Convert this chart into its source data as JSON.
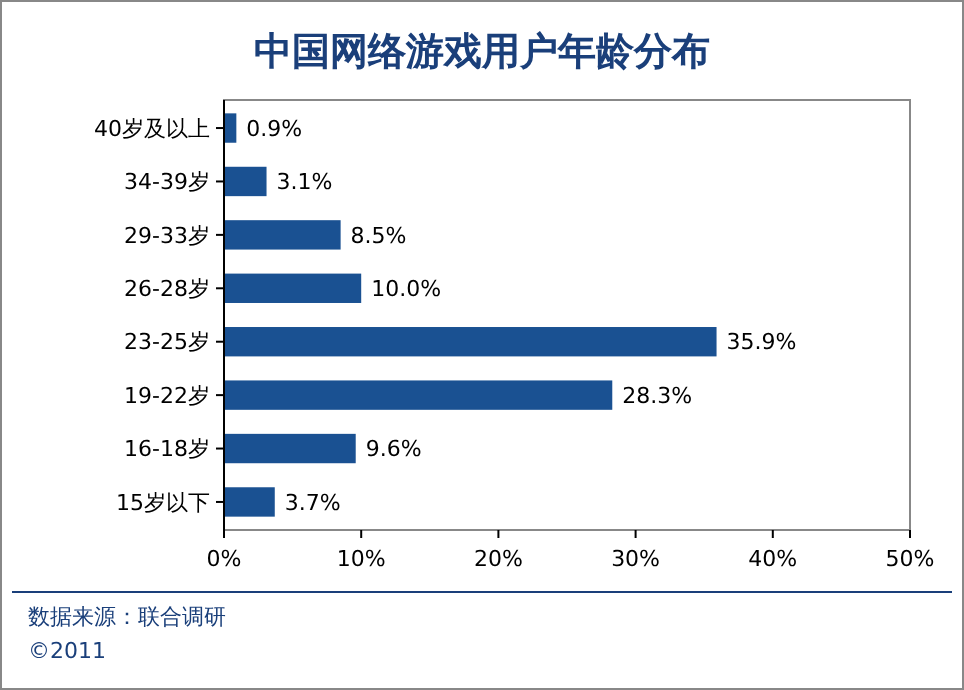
{
  "chart_data": {
    "type": "bar",
    "orientation": "horizontal",
    "title": "中国网络游戏用户年龄分布",
    "categories": [
      "40岁及以上",
      "34-39岁",
      "29-33岁",
      "26-28岁",
      "23-25岁",
      "19-22岁",
      "16-18岁",
      "15岁以下"
    ],
    "values": [
      0.9,
      3.1,
      8.5,
      10.0,
      35.9,
      28.3,
      9.6,
      3.7
    ],
    "value_labels": [
      "0.9%",
      "3.1%",
      "8.5%",
      "10.0%",
      "35.9%",
      "28.3%",
      "9.6%",
      "3.7%"
    ],
    "color": "#1a5192",
    "xlim": [
      0,
      50
    ],
    "xticks": [
      {
        "value": 0,
        "label": "0%"
      },
      {
        "value": 10,
        "label": "10%"
      },
      {
        "value": 20,
        "label": "20%"
      },
      {
        "value": 30,
        "label": "30%"
      },
      {
        "value": 40,
        "label": "40%"
      },
      {
        "value": 50,
        "label": "50%"
      }
    ],
    "annotations": [
      "数据来源：联合调研",
      "©2011"
    ]
  }
}
